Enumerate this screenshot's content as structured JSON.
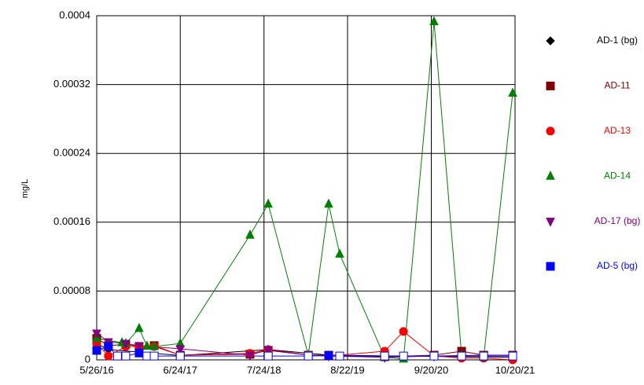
{
  "chart_data": {
    "type": "line",
    "ylabel": "mg/L",
    "xlim": [
      "2016-05-26",
      "2021-10-20"
    ],
    "xticks": [
      {
        "value": "2016-05-26",
        "label": "5/26/16"
      },
      {
        "value": "2017-06-24",
        "label": "6/24/17"
      },
      {
        "value": "2018-07-24",
        "label": "7/24/18"
      },
      {
        "value": "2019-08-22",
        "label": "8/22/19"
      },
      {
        "value": "2020-09-20",
        "label": "9/20/20"
      },
      {
        "value": "2021-10-20",
        "label": "10/20/21"
      }
    ],
    "ylim": [
      0,
      0.0004
    ],
    "yticks": [
      0,
      8e-05,
      0.00016,
      0.00024,
      0.00032,
      0.0004
    ],
    "grid": true,
    "legend": "right",
    "series": [
      {
        "name": "AD-1 (bg)",
        "color": "#000000",
        "marker": "diamond",
        "x": [
          "2016-05-26",
          "2016-07-20",
          "2017-06-24",
          "2018-08-13",
          "2019-05-25",
          "2020-10-03",
          "2021-10-09"
        ],
        "values": [
          1.9e-05,
          1.2e-05,
          5e-06,
          1.2e-05,
          5.5e-06,
          4e-06,
          3e-06
        ]
      },
      {
        "name": "AD-11",
        "color": "#800000",
        "marker": "square",
        "x": [
          "2016-05-26",
          "2016-07-20",
          "2016-10-10",
          "2016-12-12",
          "2017-02-21",
          "2017-06-24",
          "2018-05-19",
          "2018-08-13",
          "2019-02-18",
          "2019-05-25",
          "2020-02-13",
          "2020-10-03",
          "2021-02-10",
          "2021-05-25",
          "2021-10-09"
        ],
        "values": [
          2.5e-05,
          1.65e-05,
          1.8e-05,
          1.55e-05,
          1.65e-05,
          5.5e-06,
          6.5e-06,
          1.1e-05,
          5.5e-06,
          5.5e-06,
          3.5e-06,
          5.5e-06,
          1e-05,
          5.5e-06,
          5.5e-06
        ]
      },
      {
        "name": "AD-13",
        "color": "#ff0000",
        "marker": "circle",
        "x": [
          "2016-05-26",
          "2016-07-20",
          "2016-10-10",
          "2016-12-12",
          "2017-02-21",
          "2017-06-24",
          "2018-05-19",
          "2018-08-13",
          "2019-02-18",
          "2019-05-25",
          "2020-02-13",
          "2020-05-12",
          "2020-10-03",
          "2021-02-10",
          "2021-05-25",
          "2021-10-09"
        ],
        "values": [
          1.9e-05,
          4.5e-06,
          1.55e-05,
          1.55e-05,
          1.55e-05,
          5.5e-06,
          7.5e-06,
          1.2e-05,
          5.5e-06,
          4.5e-06,
          1e-05,
          3.3e-05,
          4.5e-06,
          2e-06,
          2e-06,
          0
        ]
      },
      {
        "name": "AD-14",
        "color": "#008000",
        "marker": "triangle",
        "x": [
          "2016-05-26",
          "2016-09-22",
          "2016-10-10",
          "2016-12-12",
          "2017-01-18",
          "2017-02-21",
          "2017-06-24",
          "2018-05-19",
          "2018-08-13",
          "2019-02-18",
          "2019-05-25",
          "2019-07-16",
          "2020-02-13",
          "2020-05-12",
          "2020-10-03",
          "2021-02-10",
          "2021-05-25",
          "2021-10-09"
        ],
        "values": [
          2.5e-05,
          2e-05,
          1.9e-05,
          3.65e-05,
          1.6e-05,
          1.55e-05,
          1.9e-05,
          0.000145,
          0.000181,
          5.5e-06,
          0.000181,
          0.000123,
          3e-06,
          1e-06,
          0.000393,
          5e-06,
          3e-06,
          0.00031
        ]
      },
      {
        "name": "AD-17 (bg)",
        "color": "#800080",
        "marker": "triangle-down",
        "x": [
          "2016-05-26",
          "2016-07-20",
          "2016-10-10",
          "2016-12-12",
          "2017-06-24",
          "2018-05-19",
          "2018-08-13",
          "2019-02-18",
          "2019-05-25",
          "2020-02-13",
          "2020-10-03",
          "2021-05-25",
          "2021-10-09"
        ],
        "values": [
          3.1e-05,
          2.1e-05,
          1.9e-05,
          1.65e-05,
          1.28e-05,
          5.5e-06,
          1.2e-05,
          5.5e-06,
          4.5e-06,
          3e-06,
          4.5e-06,
          5.5e-06,
          5.5e-06
        ]
      },
      {
        "name": "AD-5 (bg)",
        "color": "#0000ff",
        "marker": "square",
        "x": [
          "2016-05-26",
          "2016-07-20",
          "2016-09-01",
          "2016-10-10",
          "2016-12-12",
          "2017-01-18",
          "2017-02-21",
          "2017-06-24",
          "2018-08-13",
          "2019-02-18",
          "2019-05-25",
          "2019-07-16",
          "2020-02-13",
          "2020-05-12",
          "2020-10-03",
          "2021-02-10",
          "2021-05-25",
          "2021-10-09"
        ],
        "values": [
          1.1e-05,
          1.55e-05,
          4.5e-06,
          4.5e-06,
          8e-06,
          4.5e-06,
          4.5e-06,
          4.5e-06,
          4.5e-06,
          4.5e-06,
          5e-06,
          4.5e-06,
          4.5e-06,
          4.5e-06,
          4.5e-06,
          4.5e-06,
          4.5e-06,
          4.5e-06
        ],
        "marker_fills": [
          "#0000ff",
          "#0000ff",
          "#ffffff",
          "#ffffff",
          "#0000ff",
          "#ffffff",
          "#ffffff",
          "#ffffff",
          "#ffffff",
          "#ffffff",
          "#0000ff",
          "#ffffff",
          "#ffffff",
          "#ffffff",
          "#ffffff",
          "#ffffff",
          "#ffffff",
          "#ffffff"
        ]
      }
    ]
  }
}
